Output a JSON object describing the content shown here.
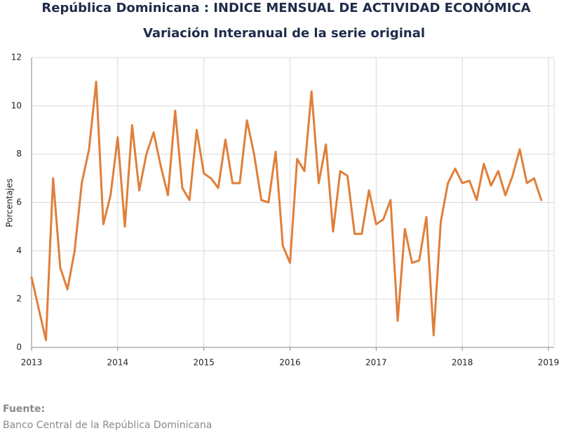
{
  "chart_data": {
    "type": "line",
    "title": "República Dominicana : INDICE MENSUAL DE ACTIVIDAD ECONÓMICA",
    "subtitle": "Variación Interanual de la serie original",
    "y_label": "Porcentajes",
    "source_label": "Fuente:",
    "source": "Banco Central de la República Dominicana",
    "x": [
      2013,
      2013.083,
      2013.167,
      2013.25,
      2013.333,
      2013.417,
      2013.5,
      2013.583,
      2013.667,
      2013.75,
      2013.833,
      2013.917,
      2014,
      2014.083,
      2014.167,
      2014.25,
      2014.333,
      2014.417,
      2014.5,
      2014.583,
      2014.667,
      2014.75,
      2014.833,
      2014.917,
      2015,
      2015.083,
      2015.167,
      2015.25,
      2015.333,
      2015.417,
      2015.5,
      2015.583,
      2015.667,
      2015.75,
      2015.833,
      2015.917,
      2016,
      2016.083,
      2016.167,
      2016.25,
      2016.333,
      2016.417,
      2016.5,
      2016.583,
      2016.667,
      2016.75,
      2016.833,
      2016.917,
      2017,
      2017.083,
      2017.167,
      2017.25,
      2017.333,
      2017.417,
      2017.5,
      2017.583,
      2017.667,
      2017.75,
      2017.833,
      2017.917,
      2018,
      2018.083,
      2018.167,
      2018.25,
      2018.333,
      2018.417,
      2018.5,
      2018.583,
      2018.667,
      2018.75,
      2018.833,
      2018.917
    ],
    "series": [
      {
        "name": "Variación interanual",
        "color": "#e07f3a",
        "values": [
          2.9,
          1.6,
          0.3,
          7.0,
          3.3,
          2.4,
          4.0,
          6.8,
          8.2,
          11.0,
          5.1,
          6.3,
          8.7,
          5.0,
          9.2,
          6.5,
          8.0,
          8.9,
          7.5,
          6.3,
          9.8,
          6.6,
          6.1,
          9.0,
          7.2,
          7.0,
          6.6,
          8.6,
          6.8,
          6.8,
          9.4,
          8.0,
          6.1,
          6.0,
          8.1,
          4.2,
          3.5,
          7.8,
          7.3,
          10.6,
          6.8,
          8.4,
          4.8,
          7.3,
          7.1,
          4.7,
          4.7,
          6.5,
          5.1,
          5.3,
          6.1,
          1.1,
          4.9,
          3.5,
          3.6,
          5.4,
          0.5,
          5.2,
          6.8,
          7.4,
          6.8,
          6.9,
          6.1,
          7.6,
          6.7,
          7.3,
          6.3,
          7.1,
          8.2,
          6.8,
          7.0,
          6.1
        ]
      }
    ],
    "xlim": [
      2013,
      2019
    ],
    "xticks": [
      2013,
      2014,
      2015,
      2016,
      2017,
      2018,
      2019
    ],
    "ylim": [
      0,
      12
    ],
    "yticks": [
      0,
      2,
      4,
      6,
      8,
      10,
      12
    ],
    "grid": true
  }
}
